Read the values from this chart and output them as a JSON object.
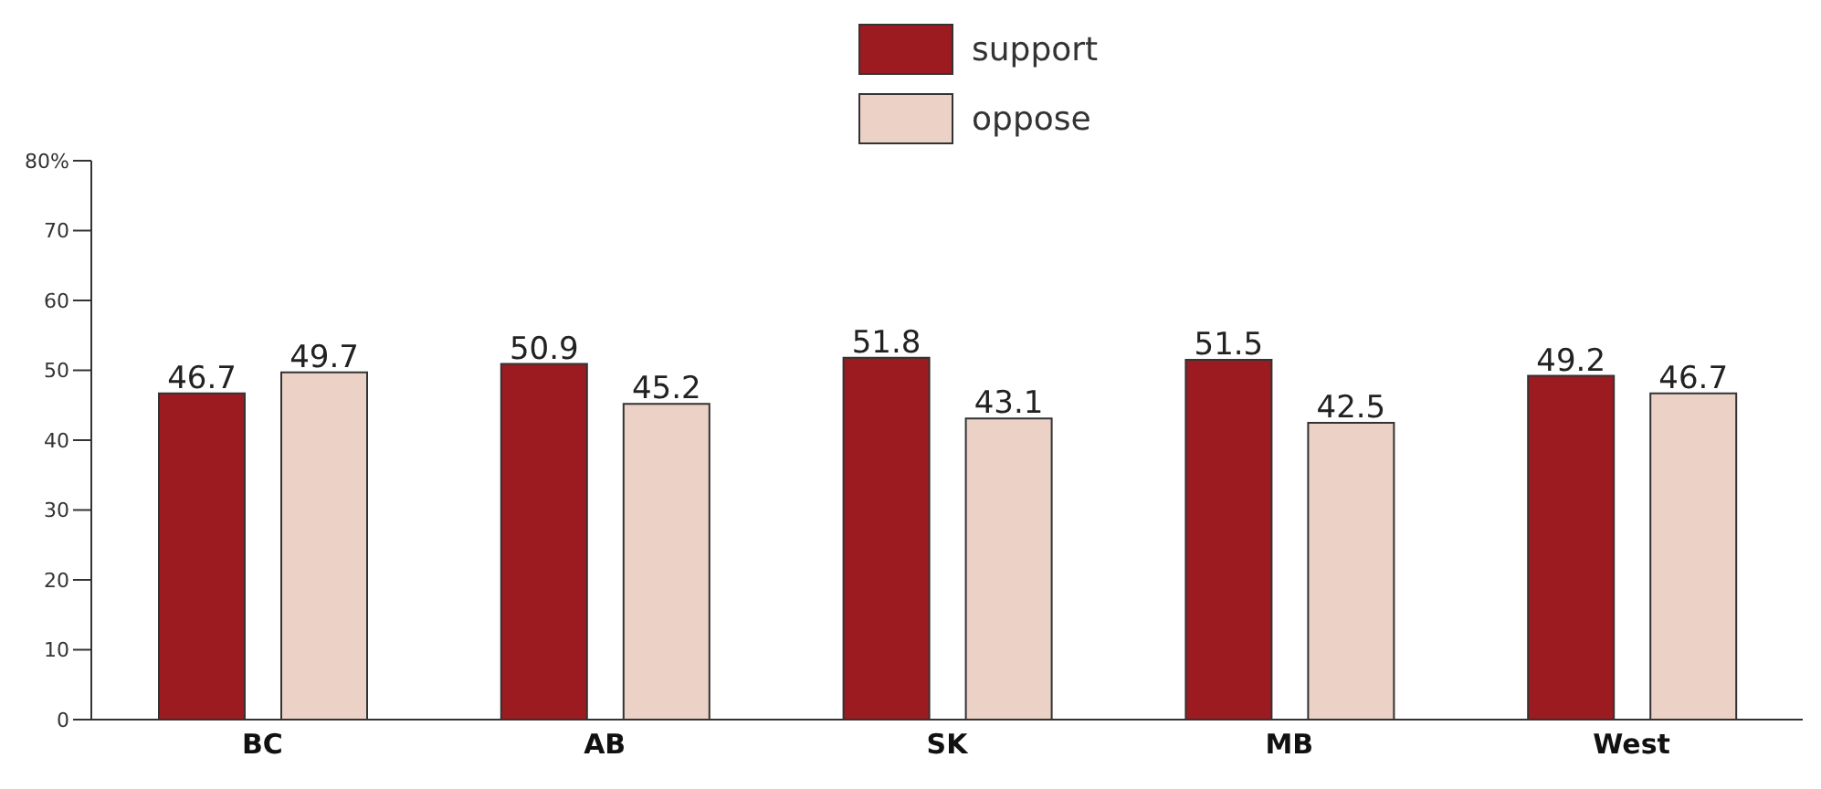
{
  "chart_data": {
    "type": "bar",
    "categories": [
      "BC",
      "AB",
      "SK",
      "MB",
      "West"
    ],
    "series": [
      {
        "name": "support",
        "color": "#9b1b20",
        "values": [
          46.7,
          50.9,
          51.8,
          51.5,
          49.2
        ]
      },
      {
        "name": "oppose",
        "color": "#ebd1c6",
        "values": [
          49.7,
          45.2,
          43.1,
          42.5,
          46.7
        ]
      }
    ],
    "ylim": [
      0,
      80
    ],
    "yticks": [
      0,
      10,
      20,
      30,
      40,
      50,
      60,
      70,
      {
        "value": 80,
        "label": "80%"
      }
    ],
    "grid": false,
    "legend": "top",
    "data_labels": true
  }
}
